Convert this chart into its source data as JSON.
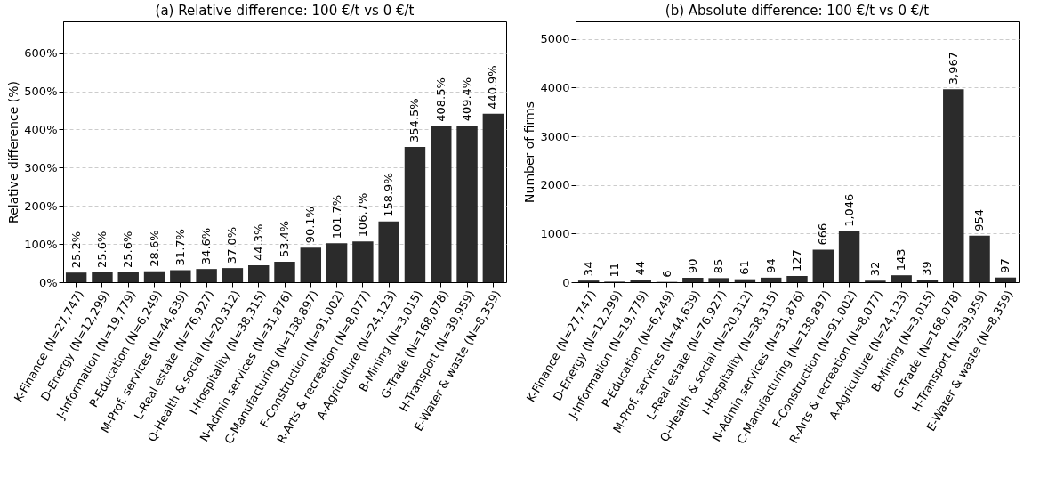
{
  "chart_data": [
    {
      "type": "bar",
      "title": "(a) Relative difference: 100 €/t vs 0 €/t",
      "ylabel": "Relative difference (%)",
      "categories": [
        "K-Finance (N=27,747)",
        "D-Energy (N=12,299)",
        "J-Information (N=19,779)",
        "P-Education (N=6,249)",
        "M-Prof. services (N=44,639)",
        "L-Real estate (N=76,927)",
        "Q-Health & social (N=20,312)",
        "I-Hospitality (N=38,315)",
        "N-Admin services (N=31,876)",
        "C-Manufacturing (N=138,897)",
        "F-Construction (N=91,002)",
        "R-Arts & recreation (N=8,077)",
        "A-Agriculture (N=24,123)",
        "B-Mining (N=3,015)",
        "G-Trade (N=168,078)",
        "H-Transport (N=39,959)",
        "E-Water & waste (N=8,359)"
      ],
      "series": [
        {
          "color": "#2b2b2b",
          "values": [
            25.2,
            25.6,
            25.6,
            28.6,
            31.7,
            34.6,
            37.0,
            44.3,
            53.4,
            90.1,
            101.7,
            106.7,
            158.9,
            354.5,
            408.5,
            409.4,
            440.9
          ],
          "value_labels": [
            "25.2%",
            "25.6%",
            "25.6%",
            "28.6%",
            "31.7%",
            "34.6%",
            "37.0%",
            "44.3%",
            "53.4%",
            "90.1%",
            "101.7%",
            "106.7%",
            "158.9%",
            "354.5%",
            "408.5%",
            "409.4%",
            "440.9%"
          ]
        }
      ],
      "ylim": [
        0,
        683
      ],
      "yticks": [
        {
          "value": 0,
          "label": "0%"
        },
        {
          "value": 100,
          "label": "100%"
        },
        {
          "value": 200,
          "label": "200%"
        },
        {
          "value": 300,
          "label": "300%"
        },
        {
          "value": 400,
          "label": "400%"
        },
        {
          "value": 500,
          "label": "500%"
        },
        {
          "value": 600,
          "label": "600%"
        }
      ],
      "grid": "y"
    },
    {
      "type": "bar",
      "title": "(b) Absolute difference: 100 €/t vs 0 €/t",
      "ylabel": "Number of firms",
      "categories": [
        "K-Finance (N=27,747)",
        "D-Energy (N=12,299)",
        "J-Information (N=19,779)",
        "P-Education (N=6,249)",
        "M-Prof. services (N=44,639)",
        "L-Real estate (N=76,927)",
        "Q-Health & social (N=20,312)",
        "I-Hospitality (N=38,315)",
        "N-Admin services (N=31,876)",
        "C-Manufacturing (N=138,897)",
        "F-Construction (N=91,002)",
        "R-Arts & recreation (N=8,077)",
        "A-Agriculture (N=24,123)",
        "B-Mining (N=3,015)",
        "G-Trade (N=168,078)",
        "H-Transport (N=39,959)",
        "E-Water & waste (N=8,359)"
      ],
      "series": [
        {
          "color": "#2b2b2b",
          "values": [
            34,
            11,
            44,
            6,
            90,
            85,
            61,
            94,
            127,
            666,
            1046,
            32,
            143,
            39,
            3967,
            954,
            97
          ],
          "value_labels": [
            "34",
            "11",
            "44",
            "6",
            "90",
            "85",
            "61",
            "94",
            "127",
            "666",
            "1,046",
            "32",
            "143",
            "39",
            "3,967",
            "954",
            "97"
          ]
        }
      ],
      "ylim": [
        0,
        5360
      ],
      "yticks": [
        0,
        1000,
        2000,
        3000,
        4000,
        5000
      ],
      "grid": "y"
    }
  ]
}
